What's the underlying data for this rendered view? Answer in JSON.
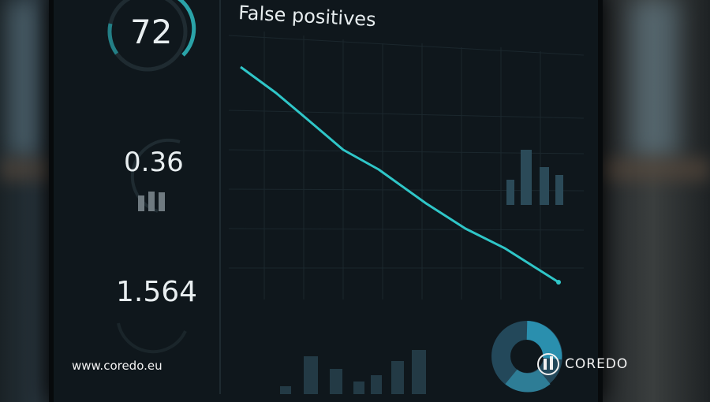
{
  "dashboard": {
    "metrics": [
      {
        "value": "72"
      },
      {
        "value": "0.36"
      },
      {
        "value": "1.564"
      }
    ],
    "chart_title": "False positives"
  },
  "watermark": {
    "url": "www.coredo.eu",
    "brand": "COREDO"
  },
  "colors": {
    "accent": "#2fc6c8",
    "panel": "#0f171c"
  }
}
